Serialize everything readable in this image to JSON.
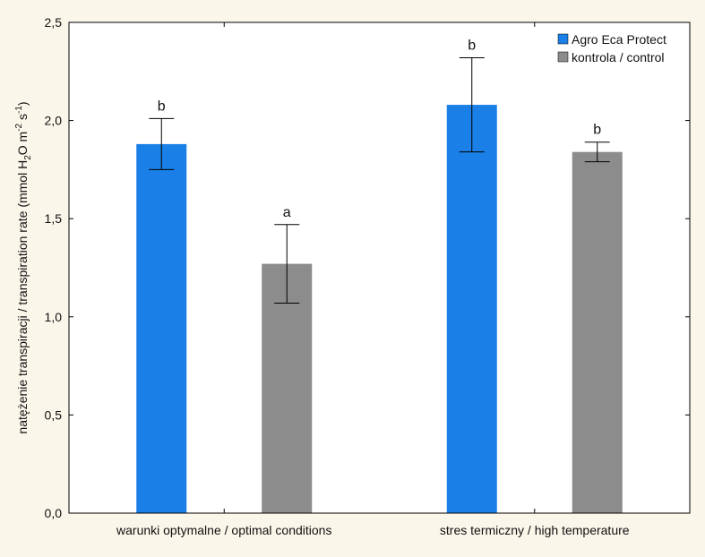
{
  "chart_data": {
    "type": "bar",
    "title": "",
    "xlabel": "",
    "ylabel_parts": {
      "prefix": "natężenie transpiracji / transpiration rate (mmol H",
      "sub": "2",
      "mid": "O m",
      "sup1": "-2",
      "mid2": " s",
      "sup2": "-1",
      "suffix": ")"
    },
    "categories": [
      "warunki optymalne / optimal conditions",
      "stres termiczny / high temperature"
    ],
    "series": [
      {
        "name": "Agro Eca Protect",
        "color": "#1a7fe6",
        "values": [
          1.88,
          2.08
        ],
        "errors": [
          0.13,
          0.24
        ],
        "letters": [
          "b",
          "b"
        ]
      },
      {
        "name": "kontrola / control",
        "color": "#8c8c8c",
        "values": [
          1.27,
          1.84
        ],
        "errors": [
          0.2,
          0.05
        ],
        "letters": [
          "a",
          "b"
        ]
      }
    ],
    "ylim": [
      0,
      2.5
    ],
    "yticks": [
      0,
      0.5,
      1.0,
      1.5,
      2.0,
      2.5
    ],
    "ytick_labels": [
      "0,0",
      "0,5",
      "1,0",
      "1,5",
      "2,0",
      "2,5"
    ],
    "legend_position": "top-right",
    "grid": false
  }
}
